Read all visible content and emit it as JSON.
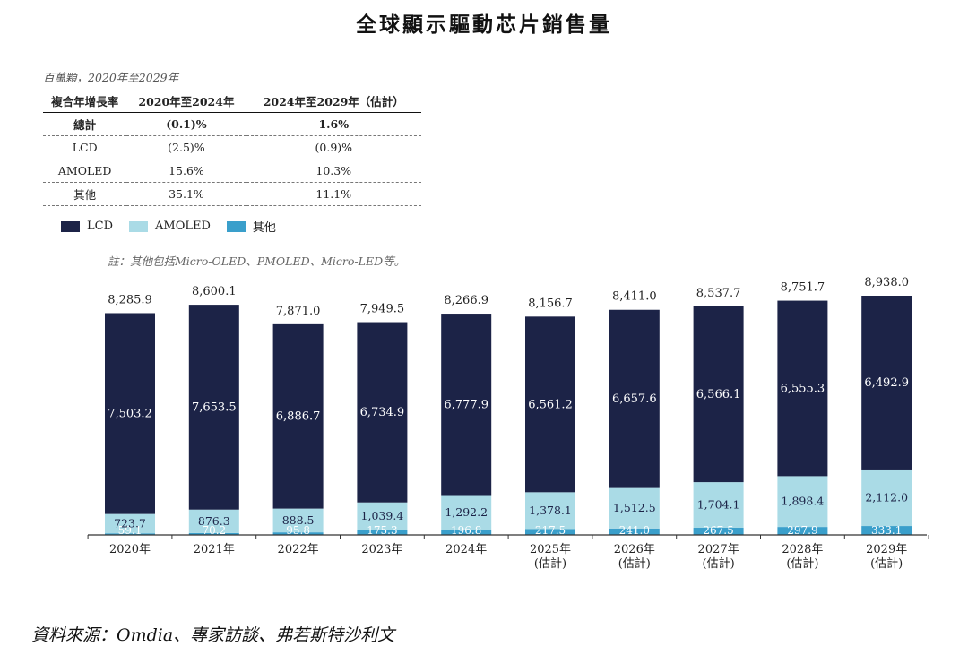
{
  "title": "全球顯示驅動芯片銷售量",
  "unit_note": "百萬顆，2020年至2029年",
  "cagr_table": {
    "headers": [
      "複合年增長率",
      "2020年至2024年",
      "2024年至2029年（估計）"
    ],
    "rows": [
      [
        "總計",
        "(0.1)%",
        "1.6%"
      ],
      [
        "LCD",
        "(2.5)%",
        "(0.9)%"
      ],
      [
        "AMOLED",
        "15.6%",
        "10.3%"
      ],
      [
        "其他",
        "35.1%",
        "11.1%"
      ]
    ]
  },
  "legend": [
    {
      "label": "LCD",
      "color": "#1c2347"
    },
    {
      "label": "AMOLED",
      "color": "#aadbe6"
    },
    {
      "label": "其他",
      "color": "#3a9fcb"
    }
  ],
  "note": "註：其他包括Micro-OLED、PMOLED、Micro-LED等。",
  "source": "資料來源：Omdia、專家訪談、弗若斯特沙利文",
  "chart_data": {
    "type": "bar",
    "stacked": true,
    "title": "全球顯示驅動芯片銷售量",
    "unit": "百萬顆",
    "categories": [
      "2020年",
      "2021年",
      "2022年",
      "2023年",
      "2024年",
      "2025年\n(估計)",
      "2026年\n(估計)",
      "2027年\n(估計)",
      "2028年\n(估計)",
      "2029年\n(估計)"
    ],
    "series": [
      {
        "name": "其他",
        "values": [
          59.1,
          70.2,
          95.8,
          175.3,
          196.8,
          217.5,
          241.0,
          267.5,
          297.9,
          333.1
        ],
        "labels": [
          "59.1",
          "70.2",
          "95.8",
          "175.3",
          "196.8",
          "217.5",
          "241.0",
          "267.5",
          "297.9",
          "333.1"
        ]
      },
      {
        "name": "AMOLED",
        "values": [
          723.7,
          876.3,
          888.5,
          1039.4,
          1292.2,
          1378.1,
          1512.5,
          1704.1,
          1898.4,
          2112.0
        ],
        "labels": [
          "723.7",
          "876.3",
          "888.5",
          "1,039.4",
          "1,292.2",
          "1,378.1",
          "1,512.5",
          "1,704.1",
          "1,898.4",
          "2,112.0"
        ]
      },
      {
        "name": "LCD",
        "values": [
          7503.2,
          7653.5,
          6886.7,
          6734.9,
          6777.9,
          6561.2,
          6657.6,
          6566.1,
          6555.3,
          6492.9
        ],
        "labels": [
          "7,503.2",
          "7,653.5",
          "6,886.7",
          "6,734.9",
          "6,777.9",
          "6,561.2",
          "6,657.6",
          "6,566.1",
          "6,555.3",
          "6,492.9"
        ]
      }
    ],
    "totals": [
      8285.9,
      8600.1,
      7871.0,
      7949.5,
      8266.9,
      8156.7,
      8411.0,
      8537.7,
      8751.7,
      8938.0
    ],
    "total_labels": [
      "8,285.9",
      "8,600.1",
      "7,871.0",
      "7,949.5",
      "8,266.9",
      "8,156.7",
      "8,411.0",
      "8,537.7",
      "8,751.7",
      "8,938.0"
    ],
    "xlabel": "",
    "ylabel": "",
    "ylim": [
      0,
      9000
    ],
    "grid": false,
    "legend_position": "top-left"
  }
}
